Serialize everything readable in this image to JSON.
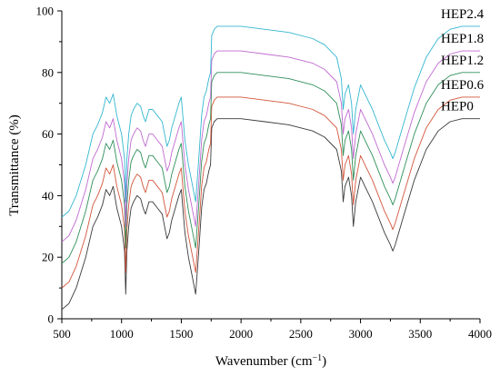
{
  "chart_data": {
    "type": "line",
    "xlabel": "Wavenumber (cm",
    "xlabel_sup": "−1",
    "xlabel_end": ")",
    "ylabel": "Transmittance (%)",
    "xlim": [
      500,
      4000
    ],
    "ylim": [
      0,
      100
    ],
    "xticks": [
      500,
      1000,
      1500,
      2000,
      2500,
      3000,
      3500,
      4000
    ],
    "yticks": [
      0,
      20,
      40,
      60,
      80,
      100
    ],
    "grid": false,
    "legend": "right, labels beside curve ends",
    "base_profile": {
      "x": [
        500,
        560,
        620,
        700,
        760,
        800,
        840,
        870,
        900,
        930,
        960,
        1000,
        1025,
        1035,
        1045,
        1060,
        1080,
        1100,
        1130,
        1160,
        1180,
        1200,
        1230,
        1260,
        1300,
        1340,
        1380,
        1400,
        1420,
        1450,
        1480,
        1500,
        1530,
        1560,
        1590,
        1620,
        1635,
        1650,
        1670,
        1690,
        1710,
        1730,
        1745,
        1755,
        1765,
        1775,
        1800,
        1900,
        2000,
        2200,
        2400,
        2600,
        2700,
        2800,
        2840,
        2855,
        2870,
        2900,
        2925,
        2940,
        2960,
        3000,
        3050,
        3100,
        3200,
        3250,
        3270,
        3290,
        3350,
        3450,
        3550,
        3650,
        3750,
        3850,
        3950,
        4000
      ],
      "values": [
        3,
        5,
        10,
        20,
        30,
        33,
        37,
        42,
        40,
        43,
        36,
        30,
        22,
        8,
        22,
        30,
        36,
        38,
        40,
        39,
        36,
        34,
        38,
        38,
        36,
        34,
        26,
        28,
        32,
        36,
        40,
        42,
        28,
        20,
        14,
        8,
        16,
        24,
        36,
        42,
        44,
        48,
        50,
        62,
        63,
        64,
        65,
        65,
        65,
        64,
        63,
        61,
        59,
        55,
        48,
        38,
        43,
        46,
        40,
        30,
        38,
        46,
        42,
        38,
        28,
        24,
        22,
        24,
        32,
        45,
        55,
        61,
        64,
        65,
        65,
        65
      ]
    },
    "series": [
      {
        "name": "HEP0",
        "offset": 0,
        "color": "#3a3a3a"
      },
      {
        "name": "HEP0.6",
        "offset": 7,
        "color": "#d2563c"
      },
      {
        "name": "HEP1.2",
        "offset": 15,
        "color": "#2f8f5a"
      },
      {
        "name": "HEP1.8",
        "offset": 22,
        "color": "#c06ad0"
      },
      {
        "name": "HEP2.4",
        "offset": 30,
        "color": "#34b7d1"
      }
    ]
  }
}
